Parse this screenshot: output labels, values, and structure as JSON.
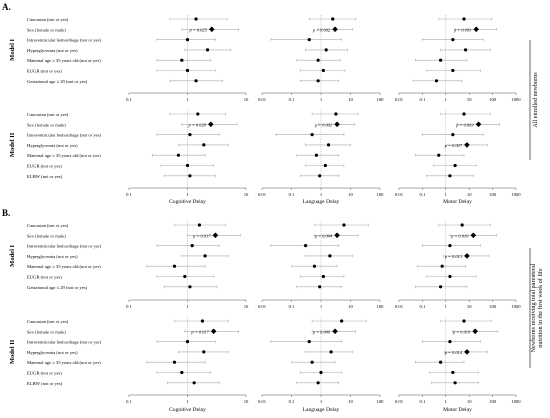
{
  "chart_data": {
    "type": "scatter",
    "style": "forest-plot",
    "x_scale": "log",
    "ylabels_model_I": [
      "Caucasian (not or yes)",
      "Sex (female or male)",
      "Intraventricular hemorrhage (not or yes)",
      "Hyperglycemia (not or yes)",
      "Maternal age ≥ 35 years old (not or yes)",
      "EUGR (not or yes)",
      "Gestational age ≤ 29 (not or yes)"
    ],
    "ylabels_model_II": [
      "Caucasian (not or yes)",
      "Sex (female or male)",
      "Intraventricular hemorrhage (not or yes)",
      "Hyperglycemia (not or yes)",
      "Maternal age ≥ 35 years old (not or yes)",
      "EUGR (not or yes)",
      "ELBW (not or yes)"
    ],
    "panels": [
      {
        "label": "A.",
        "side_label": "All enrolled newborns",
        "models": [
          {
            "name": "Model I",
            "columns": [
              {
                "name": "Cognitive Delay",
                "xlim": [
                  0.1,
                  10
                ],
                "ticks": [
                  "0.1",
                  "1",
                  "10"
                ],
                "p_value": "p = 0.025",
                "p_row": 1,
                "or": [
                  1.4,
                  2.6,
                  1.0,
                  2.2,
                  0.8,
                  1.0,
                  1.4
                ],
                "lo": [
                  0.5,
                  0.8,
                  0.3,
                  0.9,
                  0.3,
                  0.3,
                  0.5
                ],
                "hi": [
                  4.8,
                  7.5,
                  3.0,
                  5.5,
                  2.5,
                  3.0,
                  4.0
                ],
                "sig": [
                  false,
                  true,
                  false,
                  false,
                  false,
                  false,
                  false
                ]
              },
              {
                "name": "Language Delay",
                "xlim": [
                  0.01,
                  100
                ],
                "ticks": [
                  "0.01",
                  "0.1",
                  "1",
                  "10",
                  "100"
                ],
                "p_value": "p = 0.002",
                "p_row": 1,
                "or": [
                  2.5,
                  3.0,
                  0.4,
                  1.5,
                  0.8,
                  1.2,
                  0.8
                ],
                "lo": [
                  0.4,
                  0.8,
                  0.02,
                  0.3,
                  0.15,
                  0.2,
                  0.2
                ],
                "hi": [
                  15,
                  12,
                  5,
                  8,
                  4.5,
                  6.5,
                  4
                ],
                "sig": [
                  false,
                  true,
                  false,
                  false,
                  false,
                  false,
                  false
                ]
              },
              {
                "name": "Motor Delay",
                "xlim": [
                  0.01,
                  1000
                ],
                "ticks": [
                  "0.01",
                  "0.1",
                  "1",
                  "10",
                  "100",
                  "1000"
                ],
                "p_value": "p = 0.003",
                "p_row": 1,
                "or": [
                  6,
                  20,
                  2,
                  7,
                  0.6,
                  2,
                  0.4
                ],
                "lo": [
                  0.5,
                  2.5,
                  0.1,
                  0.6,
                  0.05,
                  0.15,
                  0.04
                ],
                "hi": [
                  90,
                  150,
                  40,
                  80,
                  8,
                  30,
                  5
                ],
                "sig": [
                  false,
                  true,
                  false,
                  false,
                  false,
                  false,
                  false
                ]
              }
            ]
          },
          {
            "name": "Model II",
            "columns": [
              {
                "name": "Cognitive Delay",
                "xlim": [
                  0.1,
                  10
                ],
                "ticks": [
                  "0.1",
                  "1",
                  "10"
                ],
                "p_value": "p = 0.028",
                "p_row": 1,
                "or": [
                  1.5,
                  2.5,
                  1.1,
                  1.9,
                  0.7,
                  1.0,
                  1.1
                ],
                "lo": [
                  0.5,
                  0.8,
                  0.3,
                  0.7,
                  0.25,
                  0.35,
                  0.4
                ],
                "hi": [
                  4.5,
                  7.0,
                  3.5,
                  5.0,
                  2.0,
                  2.8,
                  3.0
                ],
                "sig": [
                  false,
                  true,
                  false,
                  false,
                  false,
                  false,
                  false
                ]
              },
              {
                "name": "Language Delay",
                "xlim": [
                  0.01,
                  100
                ],
                "ticks": [
                  "0.01",
                  "0.1",
                  "1",
                  "10",
                  "100"
                ],
                "p_value": "p = 0.002",
                "p_row": 1,
                "or": [
                  3.2,
                  3.5,
                  0.5,
                  1.8,
                  0.7,
                  1.4,
                  0.9
                ],
                "lo": [
                  0.5,
                  0.8,
                  0.03,
                  0.3,
                  0.15,
                  0.3,
                  0.2
                ],
                "hi": [
                  18,
                  14,
                  6,
                  10,
                  4,
                  6,
                  4
                ],
                "sig": [
                  false,
                  true,
                  false,
                  false,
                  false,
                  false,
                  false
                ]
              },
              {
                "name": "Motor Delay",
                "xlim": [
                  0.01,
                  1000
                ],
                "ticks": [
                  "0.01",
                  "0.1",
                  "1",
                  "10",
                  "100",
                  "1000"
                ],
                "p_value": "p = 0.003",
                "p_row": 1,
                "p_value_2": "p = 0.007",
                "p_row_2": 3,
                "or": [
                  6,
                  25,
                  2,
                  8,
                  0.5,
                  2.5,
                  1.5
                ],
                "lo": [
                  0.6,
                  3,
                  0.1,
                  1.0,
                  0.05,
                  0.3,
                  0.15
                ],
                "hi": [
                  80,
                  200,
                  40,
                  60,
                  6,
                  20,
                  15
                ],
                "sig": [
                  false,
                  true,
                  false,
                  true,
                  false,
                  false,
                  false
                ]
              }
            ]
          }
        ]
      },
      {
        "label": "B.",
        "side_label": "Newborns receiving total parenteral nutrition in the first week of life",
        "models": [
          {
            "name": "Model I",
            "columns": [
              {
                "name": "Cognitive Delay",
                "xlim": [
                  0.1,
                  10
                ],
                "ticks": [
                  "0.1",
                  "1",
                  "10"
                ],
                "p_value": "p = 0.017",
                "p_row": 1,
                "or": [
                  1.6,
                  3.0,
                  1.2,
                  2.0,
                  0.6,
                  0.9,
                  1.1
                ],
                "lo": [
                  0.6,
                  1.0,
                  0.3,
                  0.8,
                  0.2,
                  0.3,
                  0.4
                ],
                "hi": [
                  4.5,
                  8.0,
                  3.5,
                  5.0,
                  2.0,
                  2.8,
                  3.2
                ],
                "sig": [
                  false,
                  true,
                  false,
                  false,
                  false,
                  false,
                  false
                ]
              },
              {
                "name": "Language Delay",
                "xlim": [
                  0.01,
                  100
                ],
                "ticks": [
                  "0.01",
                  "0.1",
                  "1",
                  "10",
                  "100"
                ],
                "p_value": "p = 0.044",
                "p_row": 1,
                "or": [
                  6,
                  3.5,
                  0.3,
                  2.0,
                  0.6,
                  1.2,
                  0.9
                ],
                "lo": [
                  0.6,
                  0.6,
                  0.02,
                  0.3,
                  0.1,
                  0.2,
                  0.15
                ],
                "hi": [
                  40,
                  18,
                  4,
                  12,
                  3.5,
                  6,
                  5
                ],
                "sig": [
                  false,
                  true,
                  false,
                  false,
                  false,
                  false,
                  false
                ]
              },
              {
                "name": "Motor Delay",
                "xlim": [
                  0.01,
                  1000
                ],
                "ticks": [
                  "0.01",
                  "0.1",
                  "1",
                  "10",
                  "100",
                  "1000"
                ],
                "p_value": "p = 0.010",
                "p_row": 1,
                "p_value_2": "p = 0.013",
                "p_row_2": 3,
                "or": [
                  5,
                  15,
                  1.5,
                  8,
                  0.7,
                  1.5,
                  0.6
                ],
                "lo": [
                  0.5,
                  1.5,
                  0.1,
                  0.8,
                  0.06,
                  0.15,
                  0.05
                ],
                "hi": [
                  80,
                  150,
                  30,
                  70,
                  7,
                  20,
                  8
                ],
                "sig": [
                  false,
                  true,
                  false,
                  true,
                  false,
                  false,
                  false
                ]
              }
            ]
          },
          {
            "name": "Model II",
            "columns": [
              {
                "name": "Cognitive Delay",
                "xlim": [
                  0.1,
                  10
                ],
                "ticks": [
                  "0.1",
                  "1",
                  "10"
                ],
                "p_value": "p = 0.017",
                "p_row": 1,
                "or": [
                  1.8,
                  2.8,
                  1.0,
                  1.9,
                  0.6,
                  0.8,
                  1.3
                ],
                "lo": [
                  0.6,
                  0.9,
                  0.3,
                  0.7,
                  0.2,
                  0.3,
                  0.45
                ],
                "hi": [
                  5.0,
                  7.5,
                  3.0,
                  5.0,
                  2.0,
                  2.5,
                  3.5
                ],
                "sig": [
                  false,
                  true,
                  false,
                  false,
                  false,
                  false,
                  false
                ]
              },
              {
                "name": "Language Delay",
                "xlim": [
                  0.01,
                  100
                ],
                "ticks": [
                  "0.01",
                  "0.1",
                  "1",
                  "10",
                  "100"
                ],
                "p_value": "p = 0.049",
                "p_row": 1,
                "or": [
                  5,
                  3.0,
                  0.4,
                  2.2,
                  0.5,
                  1.0,
                  0.8
                ],
                "lo": [
                  0.5,
                  0.5,
                  0.02,
                  0.3,
                  0.1,
                  0.2,
                  0.15
                ],
                "hi": [
                  35,
                  15,
                  5,
                  12,
                  3,
                  5,
                  4
                ],
                "sig": [
                  false,
                  true,
                  false,
                  false,
                  false,
                  false,
                  false
                ]
              },
              {
                "name": "Motor Delay",
                "xlim": [
                  0.01,
                  1000
                ],
                "ticks": [
                  "0.01",
                  "0.1",
                  "1",
                  "10",
                  "100",
                  "1000"
                ],
                "p_value": "p = 0.010",
                "p_row": 1,
                "p_value_2": "p = 0.014",
                "p_row_2": 3,
                "or": [
                  6,
                  18,
                  1.5,
                  8,
                  0.6,
                  2.0,
                  2.5
                ],
                "lo": [
                  0.6,
                  2,
                  0.1,
                  0.9,
                  0.05,
                  0.2,
                  0.25
                ],
                "hi": [
                  90,
                  160,
                  30,
                  60,
                  6,
                  25,
                  25
                ],
                "sig": [
                  false,
                  true,
                  false,
                  true,
                  false,
                  false,
                  false
                ]
              }
            ]
          }
        ]
      }
    ]
  }
}
